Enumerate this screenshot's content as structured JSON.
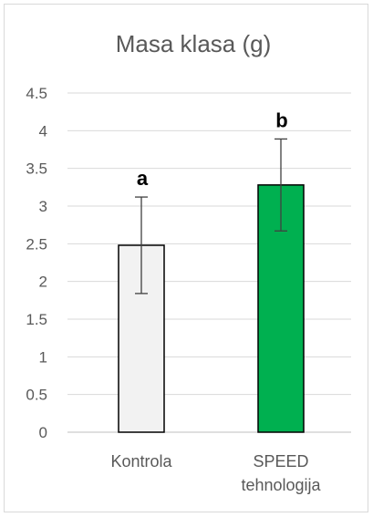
{
  "chart_data": {
    "type": "bar",
    "title": "Masa klasa (g)",
    "xlabel": "",
    "ylabel": "",
    "ylim": [
      0,
      4.5
    ],
    "yticks": [
      "0",
      "0.5",
      "1",
      "1.5",
      "2",
      "2.5",
      "3",
      "3.5",
      "4",
      "4.5"
    ],
    "grid": true,
    "categories": [
      {
        "label_lines": [
          "Kontrola"
        ]
      },
      {
        "label_lines": [
          "SPEED",
          "tehnologija"
        ]
      }
    ],
    "values": [
      2.48,
      3.28
    ],
    "error_bars": [
      0.64,
      0.61
    ],
    "significance_labels": [
      "a",
      "b"
    ],
    "colors": [
      "#f2f2f2",
      "#00b050"
    ]
  }
}
